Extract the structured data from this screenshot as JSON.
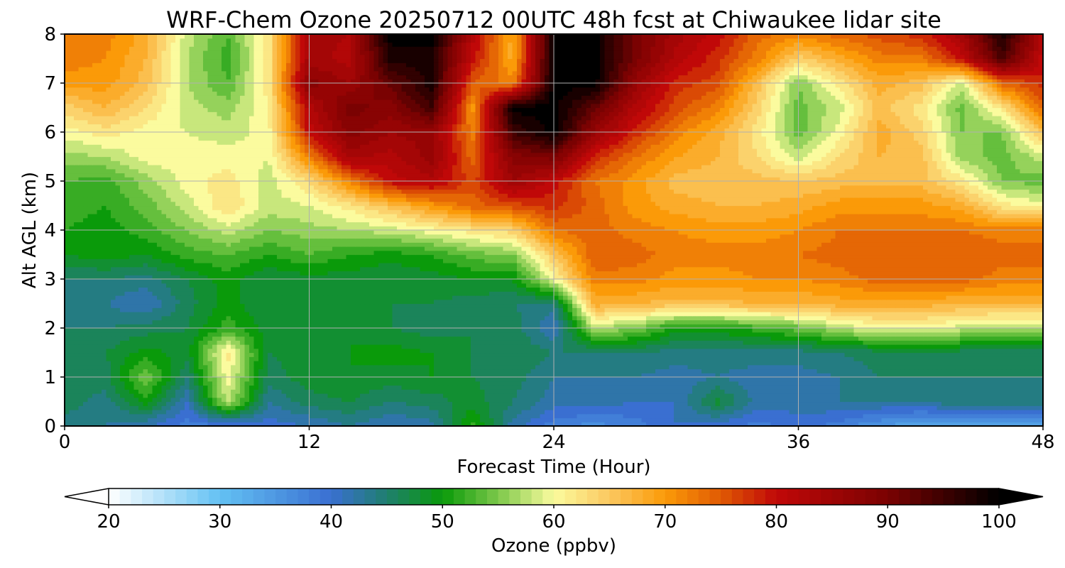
{
  "chart_data": {
    "type": "heatmap",
    "title": "WRF-Chem Ozone  20250712 00UTC 48h fcst at Chiwaukee lidar site",
    "xlabel": "Forecast Time (Hour)",
    "ylabel": "Alt AGL (km)",
    "xlim": [
      0,
      48
    ],
    "ylim": [
      0,
      8
    ],
    "xticks": [
      "0",
      "12",
      "24",
      "36",
      "48"
    ],
    "yticks": [
      "0",
      "1",
      "2",
      "3",
      "4",
      "5",
      "6",
      "7",
      "8"
    ],
    "grid": true,
    "colorbar": {
      "label": "Ozone  (ppbv)",
      "range": [
        20,
        100
      ],
      "extend": "both",
      "ticks": [
        "20",
        "30",
        "40",
        "50",
        "60",
        "70",
        "80",
        "90",
        "100"
      ],
      "colors": [
        {
          "v": 20,
          "c": "#ffffff"
        },
        {
          "v": 30,
          "c": "#63c1f3"
        },
        {
          "v": 40,
          "c": "#3a6fd1"
        },
        {
          "v": 45,
          "c": "#1f7f6e"
        },
        {
          "v": 50,
          "c": "#0a9a0a"
        },
        {
          "v": 55,
          "c": "#7cc84a"
        },
        {
          "v": 60,
          "c": "#fbfb9e"
        },
        {
          "v": 65,
          "c": "#fbc860"
        },
        {
          "v": 70,
          "c": "#fb9a08"
        },
        {
          "v": 75,
          "c": "#e05a04"
        },
        {
          "v": 80,
          "c": "#c00808"
        },
        {
          "v": 90,
          "c": "#7a0202"
        },
        {
          "v": 100,
          "c": "#000000"
        }
      ]
    },
    "x": [
      0,
      2,
      4,
      6,
      8,
      10,
      12,
      14,
      16,
      18,
      20,
      22,
      24,
      26,
      28,
      30,
      32,
      34,
      36,
      38,
      40,
      42,
      44,
      46,
      48
    ],
    "y": [
      0,
      0.5,
      1,
      1.5,
      2,
      2.5,
      3,
      3.5,
      4,
      4.5,
      5,
      5.5,
      6,
      6.5,
      7,
      7.5,
      8
    ],
    "z": [
      [
        44,
        43,
        41,
        38,
        38,
        40,
        41,
        43,
        41,
        42,
        52,
        42,
        38,
        36,
        38,
        41,
        40,
        38,
        40,
        38,
        35,
        33,
        32,
        33,
        34
      ],
      [
        46,
        44,
        50,
        41,
        58,
        43,
        46,
        47,
        45,
        46,
        48,
        45,
        42,
        42,
        41,
        41,
        48,
        42,
        42,
        43,
        43,
        43,
        45,
        44,
        45
      ],
      [
        47,
        46,
        55,
        45,
        60,
        46,
        48,
        49,
        48,
        49,
        47,
        46,
        43,
        43,
        43,
        42,
        43,
        42,
        42,
        43,
        45,
        45,
        45,
        45,
        45
      ],
      [
        47,
        47,
        50,
        48,
        62,
        47,
        48,
        49,
        50,
        49,
        47,
        47,
        45,
        45,
        45,
        44,
        44,
        44,
        44,
        45,
        46,
        46,
        46,
        46,
        46
      ],
      [
        45,
        45,
        46,
        47,
        52,
        48,
        49,
        49,
        47,
        46,
        47,
        46,
        41,
        57,
        55,
        50,
        50,
        52,
        54,
        57,
        60,
        60,
        58,
        57,
        57
      ],
      [
        44,
        43,
        41,
        46,
        50,
        47,
        48,
        48,
        47,
        47,
        46,
        45,
        44,
        68,
        67,
        66,
        66,
        67,
        67,
        68,
        68,
        68,
        67,
        67,
        67
      ],
      [
        45,
        45,
        44,
        47,
        50,
        47,
        48,
        48,
        47,
        48,
        49,
        49,
        60,
        72,
        72,
        70,
        70,
        71,
        71,
        72,
        74,
        74,
        74,
        72,
        72
      ],
      [
        49,
        50,
        49,
        52,
        53,
        51,
        53,
        51,
        50,
        51,
        54,
        55,
        65,
        75,
        74,
        72,
        72,
        72,
        73,
        74,
        75,
        75,
        75,
        74,
        74
      ],
      [
        51,
        50,
        52,
        55,
        58,
        55,
        56,
        57,
        58,
        60,
        62,
        64,
        73,
        74,
        72,
        71,
        70,
        70,
        71,
        73,
        73,
        73,
        73,
        72,
        72
      ],
      [
        52,
        51,
        54,
        58,
        63,
        58,
        59,
        62,
        66,
        70,
        74,
        76,
        78,
        74,
        70,
        68,
        67,
        67,
        68,
        70,
        70,
        70,
        68,
        62,
        60
      ],
      [
        53,
        52,
        56,
        60,
        62,
        58,
        63,
        72,
        80,
        82,
        76,
        85,
        80,
        73,
        70,
        66,
        66,
        66,
        65,
        66,
        66,
        66,
        62,
        55,
        54
      ],
      [
        56,
        57,
        60,
        60,
        60,
        59,
        72,
        84,
        82,
        86,
        74,
        88,
        90,
        78,
        73,
        69,
        67,
        63,
        58,
        63,
        67,
        66,
        56,
        54,
        58
      ],
      [
        60,
        62,
        60,
        59,
        58,
        60,
        80,
        88,
        85,
        86,
        72,
        95,
        100,
        86,
        78,
        72,
        68,
        62,
        54,
        60,
        68,
        64,
        55,
        55,
        66
      ],
      [
        64,
        67,
        63,
        58,
        56,
        61,
        82,
        90,
        88,
        95,
        70,
        100,
        100,
        92,
        82,
        76,
        72,
        64,
        54,
        58,
        66,
        62,
        54,
        62,
        74
      ],
      [
        70,
        70,
        66,
        57,
        53,
        62,
        88,
        85,
        92,
        98,
        75,
        72,
        100,
        100,
        86,
        78,
        76,
        66,
        55,
        62,
        68,
        66,
        58,
        74,
        78
      ],
      [
        72,
        71,
        67,
        57,
        52,
        62,
        84,
        82,
        98,
        98,
        80,
        68,
        100,
        100,
        90,
        82,
        78,
        72,
        64,
        68,
        72,
        72,
        80,
        94,
        80
      ],
      [
        72,
        72,
        68,
        58,
        53,
        62,
        84,
        83,
        100,
        100,
        82,
        68,
        100,
        100,
        90,
        84,
        80,
        74,
        72,
        74,
        76,
        78,
        84,
        98,
        82
      ]
    ]
  }
}
